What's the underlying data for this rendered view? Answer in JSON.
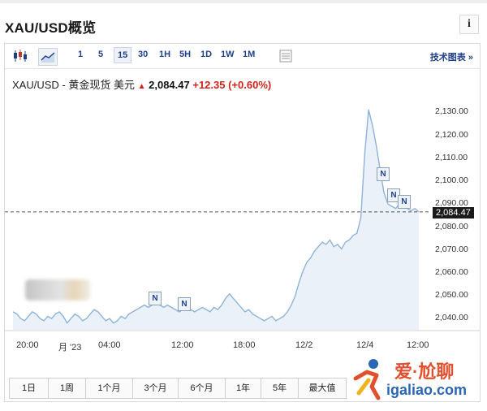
{
  "page_title": "XAU/USD概览",
  "info_button_label": "i",
  "toolbar": {
    "chart_type_icons": [
      "candlestick-icon",
      "area-chart-icon"
    ],
    "intervals": [
      "1",
      "5",
      "15",
      "30",
      "1H",
      "5H",
      "1D",
      "1W",
      "1M"
    ],
    "selected_interval": "15",
    "settings_icon": "table-icon",
    "tech_chart_link": "技术图表 »"
  },
  "quote": {
    "symbol": "XAU/USD - 黄金现货 美元",
    "price": "2,084.47",
    "change": "+12.35",
    "change_pct": "(+0.60%)",
    "direction_arrow": "▲",
    "up_color": "#d0231b"
  },
  "chart_data": {
    "type": "area",
    "title": "",
    "xlabel": "",
    "ylabel": "",
    "x_ticks": [
      "20:00",
      "月 '23",
      "04:00",
      "12:00",
      "18:00",
      "12/2",
      "12/4",
      "12:00"
    ],
    "y_ticks": [
      "2,040.00",
      "2,050.00",
      "2,060.00",
      "2,070.00",
      "2,080.00",
      "2,090.00",
      "2,100.00",
      "2,110.00",
      "2,120.00",
      "2,130.00"
    ],
    "ylim": [
      2032,
      2134
    ],
    "values": [
      2040,
      2039,
      2037,
      2036,
      2038,
      2040,
      2039,
      2037,
      2036,
      2038,
      2037,
      2039,
      2040,
      2038,
      2035,
      2037,
      2039,
      2038,
      2036,
      2037,
      2039,
      2041,
      2040,
      2038,
      2036,
      2037,
      2035,
      2036,
      2038,
      2037,
      2039,
      2040,
      2041,
      2042,
      2043,
      2042,
      2043,
      2044,
      2043,
      2042,
      2043,
      2042,
      2041,
      2040,
      2041,
      2042,
      2041,
      2040,
      2041,
      2042,
      2041,
      2040,
      2042,
      2041,
      2043,
      2046,
      2048,
      2046,
      2044,
      2042,
      2040,
      2041,
      2039,
      2038,
      2037,
      2036,
      2037,
      2038,
      2036,
      2037,
      2038,
      2040,
      2043,
      2047,
      2053,
      2058,
      2062,
      2064,
      2067,
      2069,
      2071,
      2070,
      2072,
      2069,
      2070,
      2068,
      2071,
      2072,
      2074,
      2075,
      2082,
      2110,
      2130,
      2123,
      2114,
      2103,
      2093,
      2088,
      2087,
      2086,
      2088,
      2087,
      2086,
      2085,
      2086,
      2084.47
    ],
    "last_price_label": "2,084.47",
    "reference_line": 2084.47,
    "news_markers": [
      "N",
      "N",
      "N",
      "N",
      "N"
    ],
    "grid": false,
    "series_color": "#8fb3d9",
    "fill_color": "#eaf1f9"
  },
  "range_buttons": [
    "1日",
    "1周",
    "1个月",
    "3个月",
    "6个月",
    "1年",
    "5年",
    "最大值"
  ],
  "watermark": {
    "name": "爱·尬聊",
    "url": "igaliao.com"
  }
}
